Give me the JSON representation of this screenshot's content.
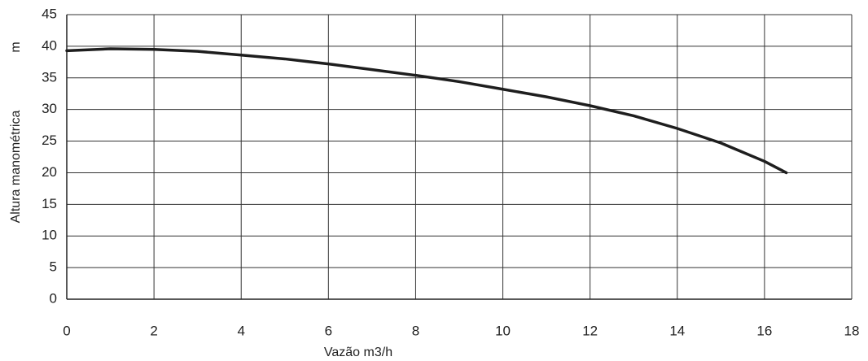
{
  "chart_data": {
    "type": "line",
    "x": [
      0,
      1,
      2,
      3,
      4,
      5,
      6,
      7,
      8,
      9,
      10,
      11,
      12,
      13,
      14,
      15,
      16,
      16.5
    ],
    "series": [
      {
        "name": null,
        "color": "#1e1e1e",
        "values": [
          39.3,
          39.6,
          39.5,
          39.2,
          38.6,
          38.0,
          37.2,
          36.3,
          35.4,
          34.4,
          33.2,
          32.0,
          30.6,
          29.0,
          27.0,
          24.7,
          21.8,
          20.0
        ]
      }
    ],
    "xlabel": "Vazão m3/h",
    "ylabel": "Altura manométrica",
    "yunit": "m",
    "xlim": [
      0,
      18
    ],
    "xticks": [
      0,
      2,
      4,
      6,
      8,
      10,
      12,
      14,
      16,
      18
    ],
    "ylim": [
      0,
      45
    ],
    "yticks": [
      0,
      5,
      10,
      15,
      20,
      25,
      30,
      35,
      40,
      45
    ],
    "grid": true
  }
}
